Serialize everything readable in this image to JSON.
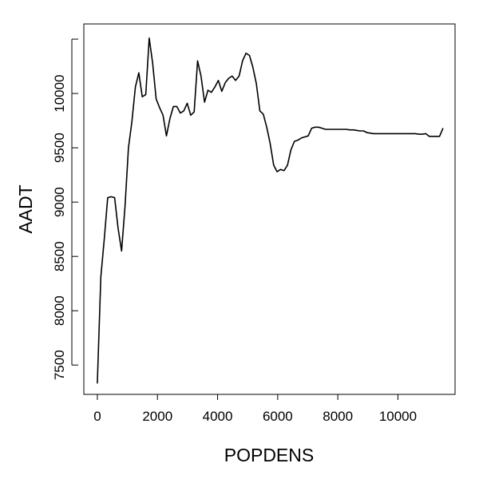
{
  "chart_data": {
    "type": "line",
    "title": "",
    "xlabel": "POPDENS",
    "ylabel": "AADT",
    "xlim": [
      -450,
      11900
    ],
    "ylim": [
      7230,
      10640
    ],
    "grid": false,
    "legend": "none",
    "line_color": "#000000",
    "x_ticks": [
      0,
      2000,
      4000,
      6000,
      8000,
      10000
    ],
    "x_tick_labels": [
      "0",
      "2000",
      "4000",
      "6000",
      "8000",
      "10000"
    ],
    "y_ticks": [
      7500,
      8000,
      8500,
      9000,
      9500,
      10000,
      10500
    ],
    "y_tick_labels": [
      "7500",
      "8000",
      "8500",
      "9000",
      "9500",
      "10000",
      ""
    ],
    "series": [
      {
        "x": [
          0,
          115,
          230,
          345,
          460,
          575,
          690,
          805,
          920,
          1035,
          1150,
          1265,
          1380,
          1495,
          1610,
          1725,
          1840,
          1955,
          2070,
          2185,
          2300,
          2415,
          2530,
          2645,
          2760,
          2875,
          2990,
          3105,
          3220,
          3335,
          3450,
          3565,
          3680,
          3795,
          3910,
          4025,
          4140,
          4255,
          4370,
          4485,
          4600,
          4715,
          4830,
          4945,
          5060,
          5175,
          5290,
          5405,
          5520,
          5635,
          5750,
          5865,
          5980,
          6095,
          6210,
          6325,
          6440,
          6555,
          6670,
          6785,
          6900,
          7015,
          7130,
          7245,
          7360,
          7475,
          7590,
          7705,
          7820,
          7935,
          8050,
          8165,
          8280,
          8395,
          8510,
          8625,
          8740,
          8855,
          8970,
          9085,
          9200,
          9315,
          9430,
          9545,
          9660,
          9775,
          9890,
          10005,
          10120,
          10235,
          10350,
          10465,
          10580,
          10695,
          10810,
          10925,
          11040,
          11155,
          11270,
          11385,
          11500
        ],
        "values": [
          7330,
          8310,
          8660,
          9040,
          9050,
          9040,
          8760,
          8550,
          8960,
          9500,
          9740,
          10060,
          10190,
          9970,
          9990,
          10510,
          10280,
          9950,
          9870,
          9800,
          9610,
          9770,
          9880,
          9880,
          9820,
          9840,
          9910,
          9800,
          9830,
          10300,
          10160,
          9920,
          10030,
          10010,
          10060,
          10120,
          10020,
          10100,
          10140,
          10160,
          10120,
          10160,
          10300,
          10370,
          10350,
          10240,
          10090,
          9840,
          9810,
          9690,
          9540,
          9340,
          9280,
          9300,
          9290,
          9340,
          9480,
          9560,
          9570,
          9590,
          9600,
          9610,
          9680,
          9690,
          9690,
          9680,
          9670,
          9670,
          9670,
          9670,
          9670,
          9670,
          9670,
          9665,
          9665,
          9660,
          9655,
          9655,
          9640,
          9635,
          9630,
          9630,
          9630,
          9630,
          9630,
          9630,
          9630,
          9630,
          9630,
          9630,
          9630,
          9630,
          9630,
          9625,
          9625,
          9630,
          9605,
          9605,
          9605,
          9605,
          9680
        ]
      }
    ]
  }
}
